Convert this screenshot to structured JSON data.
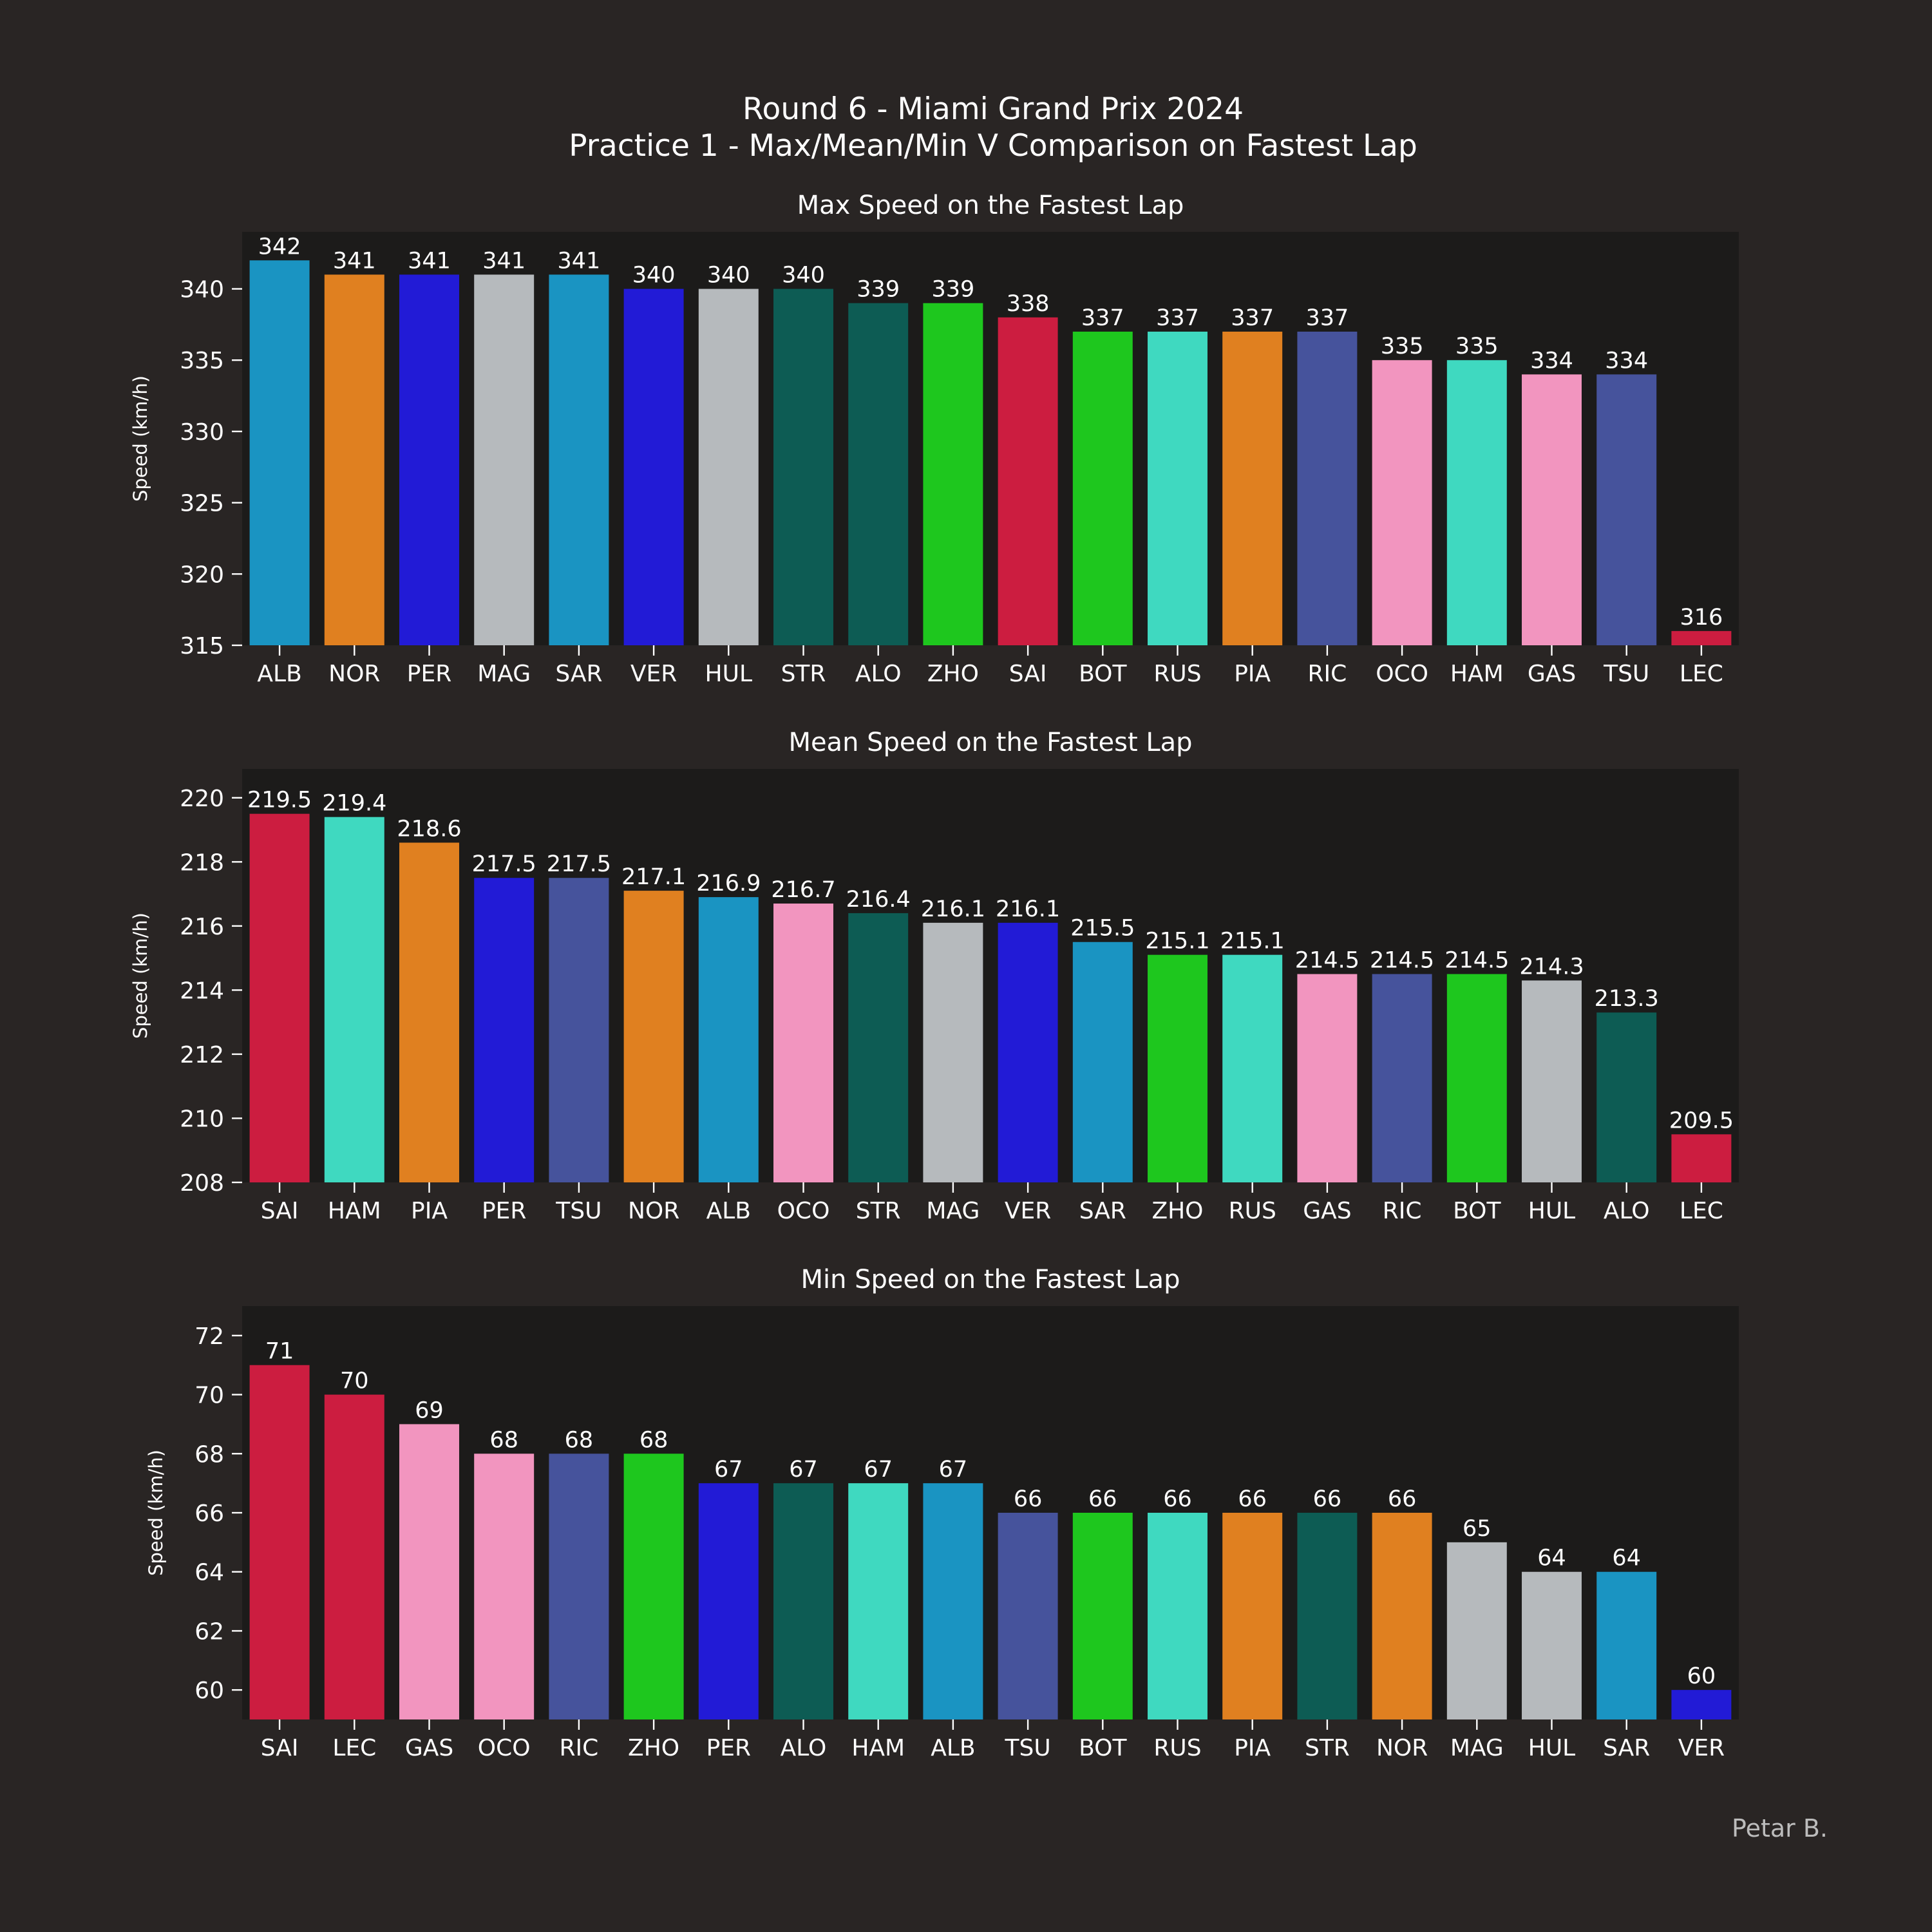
{
  "figure": {
    "title_line1": "Round 6 - Miami Grand Prix 2024",
    "title_line2": "Practice 1 - Max/Mean/Min V Comparison on Fastest Lap",
    "credit": "Petar B."
  },
  "colors": {
    "figure_background": "#292524",
    "axes_background": "#1c1b1a",
    "text": "#ffffff",
    "credit_text": "#bcbcbc"
  },
  "chart_data": [
    {
      "type": "bar",
      "title": "Max Speed on the Fastest Lap",
      "xlabel": "",
      "ylabel": "Speed (km/h)",
      "ylim": [
        315,
        344
      ],
      "yticks": [
        315,
        320,
        325,
        330,
        335,
        340
      ],
      "grid": false,
      "categories": [
        "ALB",
        "NOR",
        "PER",
        "MAG",
        "SAR",
        "VER",
        "HUL",
        "STR",
        "ALO",
        "ZHO",
        "SAI",
        "BOT",
        "RUS",
        "PIA",
        "RIC",
        "OCO",
        "HAM",
        "GAS",
        "TSU",
        "LEC"
      ],
      "values": [
        342,
        341,
        341,
        341,
        341,
        340,
        340,
        340,
        339,
        339,
        338,
        337,
        337,
        337,
        337,
        335,
        335,
        334,
        334,
        316
      ],
      "labels": [
        "342",
        "341",
        "341",
        "341",
        "341",
        "340",
        "340",
        "340",
        "339",
        "339",
        "338",
        "337",
        "337",
        "337",
        "337",
        "335",
        "335",
        "334",
        "334",
        "316"
      ],
      "colors": [
        "#1a94c2",
        "#e08020",
        "#221bd6",
        "#b6babd",
        "#1a94c2",
        "#221bd6",
        "#b6babd",
        "#0d5c54",
        "#0d5c54",
        "#1ec71e",
        "#cc1d40",
        "#1ec71e",
        "#3fd9c0",
        "#e08020",
        "#46539c",
        "#f295bf",
        "#3fd9c0",
        "#f295bf",
        "#46539c",
        "#cc1d40"
      ]
    },
    {
      "type": "bar",
      "title": "Mean Speed on the Fastest Lap",
      "xlabel": "",
      "ylabel": "Speed (km/h)",
      "ylim": [
        208,
        220.9
      ],
      "yticks": [
        208,
        210,
        212,
        214,
        216,
        218,
        220
      ],
      "grid": false,
      "categories": [
        "SAI",
        "HAM",
        "PIA",
        "PER",
        "TSU",
        "NOR",
        "ALB",
        "OCO",
        "STR",
        "MAG",
        "VER",
        "SAR",
        "ZHO",
        "RUS",
        "GAS",
        "RIC",
        "BOT",
        "HUL",
        "ALO",
        "LEC"
      ],
      "values": [
        219.5,
        219.4,
        218.6,
        217.5,
        217.5,
        217.1,
        216.9,
        216.7,
        216.4,
        216.1,
        216.1,
        215.5,
        215.1,
        215.1,
        214.5,
        214.5,
        214.5,
        214.3,
        213.3,
        209.5
      ],
      "labels": [
        "219.5",
        "219.4",
        "218.6",
        "217.5",
        "217.5",
        "217.1",
        "216.9",
        "216.7",
        "216.4",
        "216.1",
        "216.1",
        "215.5",
        "215.1",
        "215.1",
        "214.5",
        "214.5",
        "214.5",
        "214.3",
        "213.3",
        "209.5"
      ],
      "colors": [
        "#cc1d40",
        "#3fd9c0",
        "#e08020",
        "#221bd6",
        "#46539c",
        "#e08020",
        "#1a94c2",
        "#f295bf",
        "#0d5c54",
        "#b6babd",
        "#221bd6",
        "#1a94c2",
        "#1ec71e",
        "#3fd9c0",
        "#f295bf",
        "#46539c",
        "#1ec71e",
        "#b6babd",
        "#0d5c54",
        "#cc1d40"
      ]
    },
    {
      "type": "bar",
      "title": "Min Speed on the Fastest Lap",
      "xlabel": "",
      "ylabel": "Speed (km/h)",
      "ylim": [
        59,
        73
      ],
      "yticks": [
        60,
        62,
        64,
        66,
        68,
        70,
        72
      ],
      "grid": false,
      "categories": [
        "SAI",
        "LEC",
        "GAS",
        "OCO",
        "RIC",
        "ZHO",
        "PER",
        "ALO",
        "HAM",
        "ALB",
        "TSU",
        "BOT",
        "RUS",
        "PIA",
        "STR",
        "NOR",
        "MAG",
        "HUL",
        "SAR",
        "VER"
      ],
      "values": [
        71,
        70,
        69,
        68,
        68,
        68,
        67,
        67,
        67,
        67,
        66,
        66,
        66,
        66,
        66,
        66,
        65,
        64,
        64,
        60
      ],
      "labels": [
        "71",
        "70",
        "69",
        "68",
        "68",
        "68",
        "67",
        "67",
        "67",
        "67",
        "66",
        "66",
        "66",
        "66",
        "66",
        "66",
        "65",
        "64",
        "64",
        "60"
      ],
      "colors": [
        "#cc1d40",
        "#cc1d40",
        "#f295bf",
        "#f295bf",
        "#46539c",
        "#1ec71e",
        "#221bd6",
        "#0d5c54",
        "#3fd9c0",
        "#1a94c2",
        "#46539c",
        "#1ec71e",
        "#3fd9c0",
        "#e08020",
        "#0d5c54",
        "#e08020",
        "#b6babd",
        "#b6babd",
        "#1a94c2",
        "#221bd6"
      ]
    }
  ]
}
